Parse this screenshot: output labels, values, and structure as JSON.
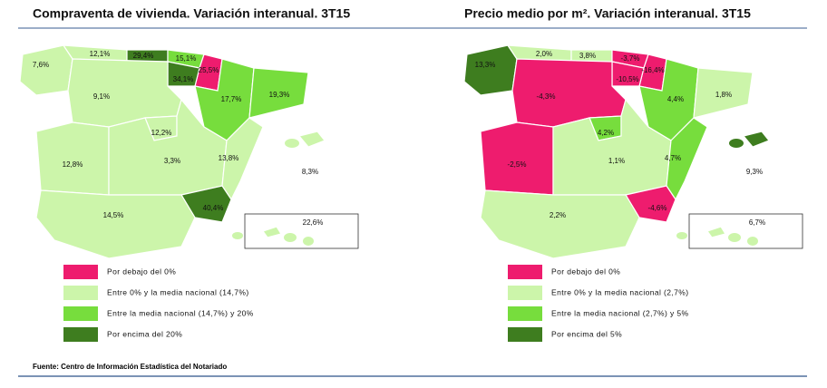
{
  "maps": [
    {
      "title": "Compraventa de vivienda. Variación interanual. 3T15",
      "regions": [
        "7,6%",
        "12,1%",
        "29,4%",
        "15,1%",
        "25,5%",
        "34,1%",
        "9,1%",
        "17,7%",
        "19,3%",
        "12,2%",
        "12,8%",
        "3,3%",
        "13,8%",
        "40,4%",
        "14,5%",
        "8,3%",
        "22,6%"
      ],
      "legend": [
        "Por debajo del 0%",
        "Entre 0% y la media nacional (14,7%)",
        "Entre la media nacional (14,7%) y 20%",
        "Por encima del 20%"
      ]
    },
    {
      "title": "Precio medio por m². Variación interanual. 3T15",
      "regions": [
        "13,3%",
        "2,0%",
        "3,8%",
        "-3,7%",
        "-16,4%",
        "-10,5%",
        "-4,3%",
        "4,4%",
        "1,8%",
        "4,2%",
        "-2,5%",
        "1,1%",
        "4,7%",
        "-4,6%",
        "2,2%",
        "9,3%",
        "6,7%"
      ],
      "legend": [
        "Por debajo del 0%",
        "Entre 0% y la media nacional (2,7%)",
        "Entre la media nacional (2,7%) y 5%",
        "Por encima del 5%"
      ]
    }
  ],
  "source": "Fuente: Centro de Información Estadística del Notariado"
}
